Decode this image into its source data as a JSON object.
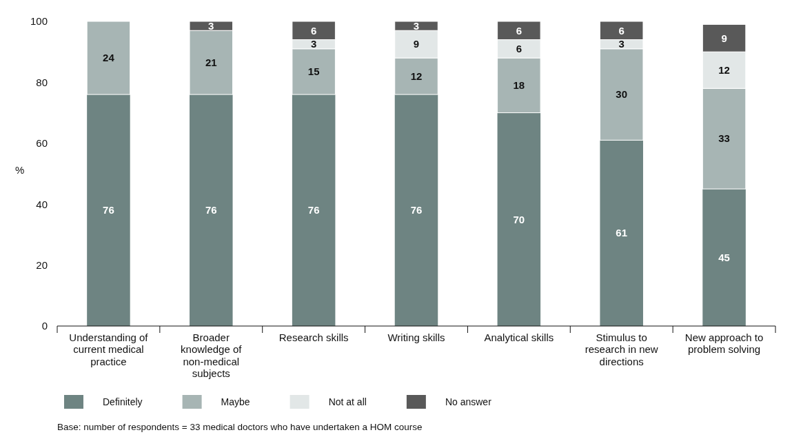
{
  "chart_data": {
    "type": "bar",
    "stacked": true,
    "ylabel": "%",
    "categories": [
      "Understanding  of current medical practice",
      "Broader knowledge of non-medical subjects",
      "Research skills",
      "Writing skills",
      "Analytical skills",
      "Stimulus to research in new directions",
      "New approach to problem solving"
    ],
    "series": [
      {
        "name": "Definitely",
        "color": "#6e8482",
        "values": [
          76,
          76,
          76,
          76,
          70,
          61,
          45
        ]
      },
      {
        "name": "Maybe",
        "color": "#a7b5b4",
        "values": [
          24,
          21,
          15,
          12,
          18,
          30,
          33
        ]
      },
      {
        "name": "Not at all",
        "color": "#e2e7e7",
        "values": [
          null,
          null,
          3,
          9,
          6,
          3,
          12
        ]
      },
      {
        "name": "No answer",
        "color": "#595959",
        "values": [
          null,
          3,
          6,
          3,
          6,
          6,
          9
        ]
      }
    ],
    "ylim": [
      0,
      100
    ],
    "yticks": [
      0,
      20,
      40,
      60,
      80,
      100
    ],
    "data_labels": true,
    "legend": "bottom",
    "grid": false,
    "annotations": [
      "Base: number of respondents = 33 medical doctors who have undertaken a HOM course"
    ]
  }
}
